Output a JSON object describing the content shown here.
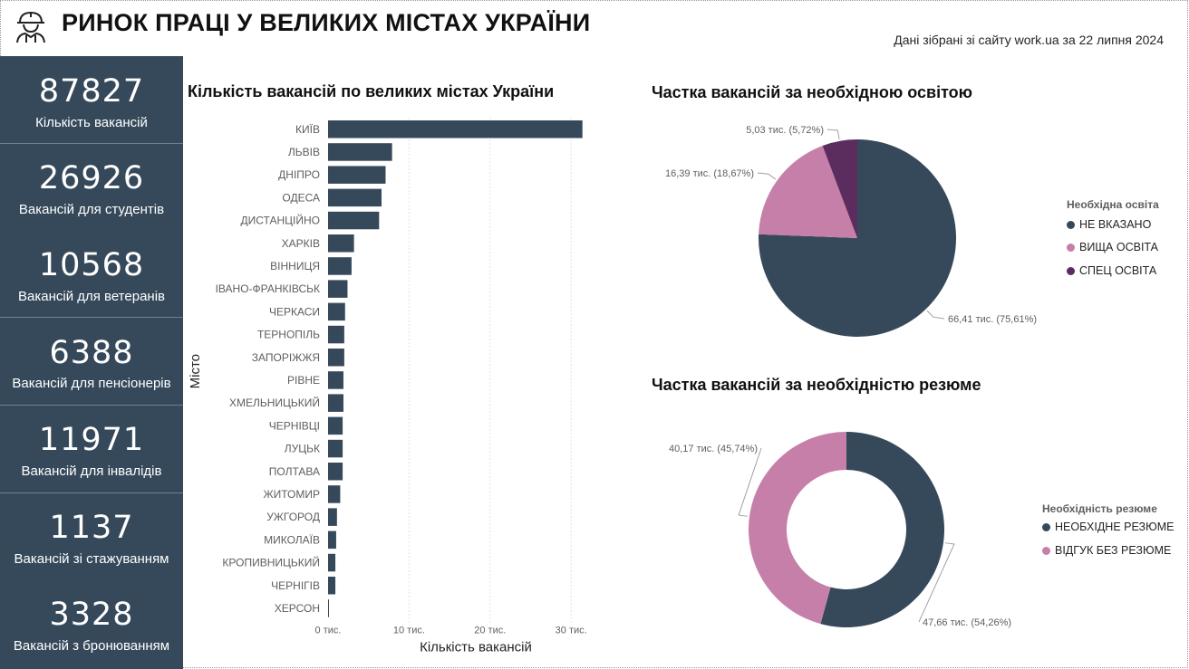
{
  "header": {
    "title": "РИНОК ПРАЦІ У ВЕЛИКИХ МІСТАХ УКРАЇНИ",
    "subtitle": "Дані зібрані зі сайту work.ua за 22 липня 2024",
    "icon": "worker-helmet-icon"
  },
  "kpis": [
    {
      "value": "87827",
      "label": "Кількість вакансій"
    },
    {
      "value": "26926",
      "label": "Вакансій для студентів"
    },
    {
      "value": "10568",
      "label": "Вакансій для ветеранів"
    },
    {
      "value": "6388",
      "label": "Вакансій для пенсіонерів"
    },
    {
      "value": "11971",
      "label": "Вакансій для інвалідів"
    },
    {
      "value": "1137",
      "label": "Вакансій зі стажуванням"
    },
    {
      "value": "3328",
      "label": "Вакансій з бронюванням"
    }
  ],
  "colors": {
    "kpi_bg": "#36495a",
    "bar": "#36495a",
    "dark": "#36495a",
    "pink": "#c57fa8",
    "purple": "#5b2d5e"
  },
  "chart_data": [
    {
      "type": "bar",
      "orientation": "horizontal",
      "title": "Кількість вакансій по великих містах України",
      "xlabel": "Кількість вакансій",
      "ylabel": "Місто",
      "categories": [
        "КИЇВ",
        "ЛЬВІВ",
        "ДНІПРО",
        "ОДЕСА",
        "ДИСТАНЦІЙНО",
        "ХАРКІВ",
        "ВІННИЦЯ",
        "ІВАНО-ФРАНКІВСЬК",
        "ЧЕРКАСИ",
        "ТЕРНОПІЛЬ",
        "ЗАПОРІЖЖЯ",
        "РІВНЕ",
        "ХМЕЛЬНИЦЬКИЙ",
        "ЧЕРНІВЦІ",
        "ЛУЦЬК",
        "ПОЛТАВА",
        "ЖИТОМИР",
        "УЖГОРОД",
        "МИКОЛАЇВ",
        "КРОПИВНИЦЬКИЙ",
        "ЧЕРНІГІВ",
        "ХЕРСОН"
      ],
      "values": [
        31.4,
        7.9,
        7.1,
        6.6,
        6.3,
        3.2,
        2.9,
        2.4,
        2.1,
        2.0,
        2.0,
        1.9,
        1.9,
        1.8,
        1.8,
        1.8,
        1.5,
        1.1,
        1.0,
        0.9,
        0.9,
        0.1
      ],
      "xticks": [
        "0 тис.",
        "10 тис.",
        "20 тис.",
        "30 тис."
      ],
      "xlim": [
        0,
        33
      ],
      "grid": true
    },
    {
      "type": "pie",
      "title": "Частка вакансій за необхідною освітою",
      "legend_title": "Необхідна освіта",
      "legend_position": "right",
      "slices": [
        {
          "name": "НЕ ВКАЗАНО",
          "value": 66.41,
          "label": "66,41 тис. (75,61%)",
          "color": "#36495a"
        },
        {
          "name": "ВИЩА ОСВІТА",
          "value": 16.39,
          "label": "16,39 тис. (18,67%)",
          "color": "#c57fa8"
        },
        {
          "name": "СПЕЦ ОСВІТА",
          "value": 5.03,
          "label": "5,03 тис. (5,72%)",
          "color": "#5b2d5e"
        }
      ]
    },
    {
      "type": "donut",
      "title": "Частка вакансій за необхідністю резюме",
      "legend_title": "Необхідність резюме",
      "legend_position": "right",
      "slices": [
        {
          "name": "НЕОБХІДНЕ РЕЗЮМЕ",
          "value": 47.66,
          "label": "47,66 тис. (54,26%)",
          "color": "#36495a"
        },
        {
          "name": "ВІДГУК БЕЗ РЕЗЮМЕ",
          "value": 40.17,
          "label": "40,17 тис. (45,74%)",
          "color": "#c57fa8"
        }
      ]
    }
  ]
}
